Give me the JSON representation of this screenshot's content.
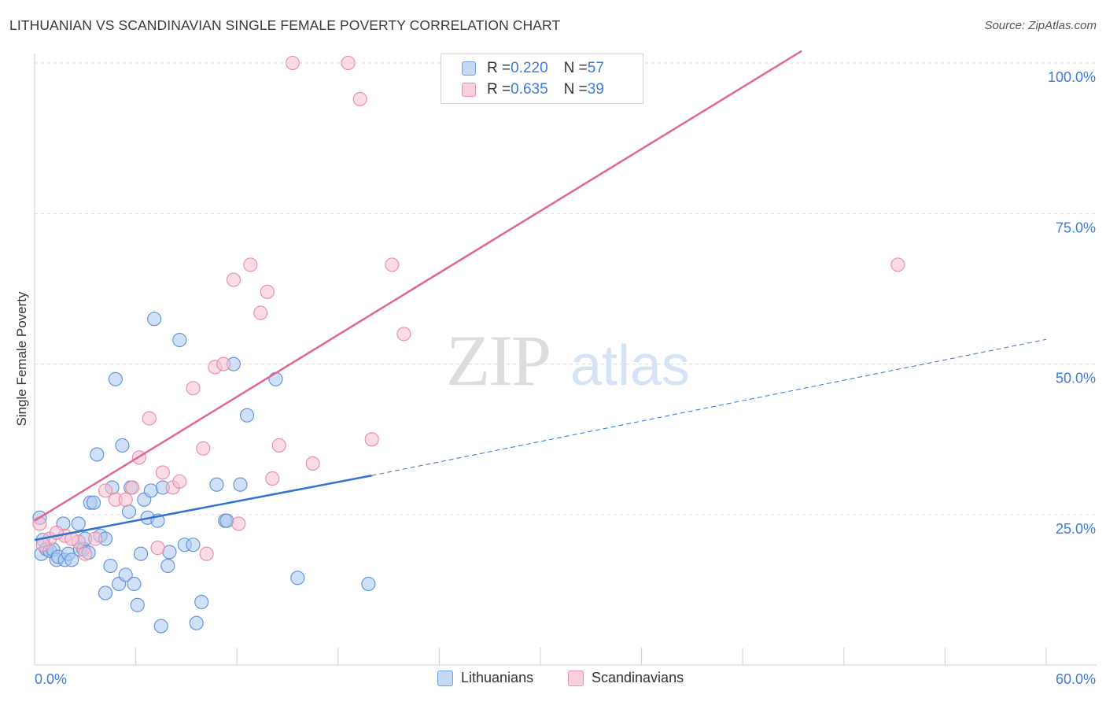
{
  "title": "LITHUANIAN VS SCANDINAVIAN SINGLE FEMALE POVERTY CORRELATION CHART",
  "source": "Source: ZipAtlas.com",
  "watermark": {
    "zip": "ZIP",
    "atlas": "atlas"
  },
  "legend": {
    "items": [
      {
        "r_label": "R = ",
        "r_value": "0.220",
        "n_label": "N = ",
        "n_value": "57",
        "fill": "#a9c8f0",
        "stroke": "#6f9fe0"
      },
      {
        "r_label": "R = ",
        "r_value": "0.635",
        "n_label": "N = ",
        "n_value": "39",
        "fill": "#f7bfd0",
        "stroke": "#ee90ab"
      }
    ]
  },
  "bottom_legend": [
    "Lithuanians",
    "Scandinavians"
  ],
  "colors": {
    "blue_fill": "#a9c8f0",
    "blue_stroke": "#5d8fd6",
    "blue_line": "#2f74d0",
    "pink_fill": "#f7bfd0",
    "pink_stroke": "#e88aa6",
    "pink_line": "#e0688f",
    "axis_label": "#3d7bd9",
    "grid": "#dcdcdc"
  },
  "chart_data": {
    "type": "scatter",
    "title": "LITHUANIAN VS SCANDINAVIAN SINGLE FEMALE POVERTY CORRELATION CHART",
    "xlabel": "",
    "ylabel": "Single Female Poverty",
    "xlim": [
      0,
      60
    ],
    "ylim": [
      0,
      102
    ],
    "x_tick_labels": [
      {
        "value": 0,
        "label": "0.0%"
      },
      {
        "value": 60,
        "label": "60.0%"
      }
    ],
    "y_tick_labels": [
      {
        "value": 25,
        "label": "25.0%"
      },
      {
        "value": 50,
        "label": "50.0%"
      },
      {
        "value": 75,
        "label": "75.0%"
      },
      {
        "value": 100,
        "label": "100.0%"
      }
    ],
    "grid": "horizontal dashed",
    "legend_position": "top-center",
    "series": [
      {
        "name": "Lithuanians",
        "r": 0.22,
        "n": 57,
        "trend": {
          "x0": 0,
          "y0": 20.8,
          "x1": 20,
          "y1": 31.5,
          "dashed_to_x": 60,
          "dashed_to_y": 54.1
        },
        "points": [
          [
            0.4,
            18.5
          ],
          [
            0.5,
            20.8
          ],
          [
            0.7,
            19.3
          ],
          [
            0.9,
            19.0
          ],
          [
            1.1,
            19.2
          ],
          [
            1.3,
            17.5
          ],
          [
            1.4,
            18.0
          ],
          [
            1.7,
            23.5
          ],
          [
            1.8,
            17.5
          ],
          [
            2.0,
            18.5
          ],
          [
            2.2,
            17.5
          ],
          [
            2.6,
            23.5
          ],
          [
            2.7,
            19.2
          ],
          [
            2.9,
            19.3
          ],
          [
            3.0,
            21.0
          ],
          [
            3.2,
            18.7
          ],
          [
            3.3,
            27.0
          ],
          [
            3.5,
            27.0
          ],
          [
            3.7,
            35.0
          ],
          [
            3.9,
            21.5
          ],
          [
            4.2,
            21.0
          ],
          [
            4.2,
            12.0
          ],
          [
            4.5,
            16.5
          ],
          [
            4.6,
            29.5
          ],
          [
            4.8,
            47.5
          ],
          [
            5.0,
            13.5
          ],
          [
            5.2,
            36.5
          ],
          [
            5.4,
            15.0
          ],
          [
            5.6,
            25.5
          ],
          [
            5.7,
            29.5
          ],
          [
            5.9,
            13.5
          ],
          [
            6.1,
            10.0
          ],
          [
            6.3,
            18.5
          ],
          [
            6.5,
            27.5
          ],
          [
            6.7,
            24.5
          ],
          [
            6.9,
            29.0
          ],
          [
            7.1,
            57.5
          ],
          [
            7.3,
            24.0
          ],
          [
            7.5,
            6.5
          ],
          [
            7.6,
            29.5
          ],
          [
            7.9,
            16.5
          ],
          [
            8.0,
            18.8
          ],
          [
            8.6,
            54.0
          ],
          [
            8.9,
            20.0
          ],
          [
            9.4,
            20.0
          ],
          [
            9.6,
            7.0
          ],
          [
            9.9,
            10.5
          ],
          [
            10.8,
            30.0
          ],
          [
            11.3,
            24.0
          ],
          [
            11.4,
            24.0
          ],
          [
            11.8,
            50.0
          ],
          [
            12.2,
            30.0
          ],
          [
            12.6,
            41.5
          ],
          [
            14.3,
            47.5
          ],
          [
            15.6,
            14.5
          ],
          [
            19.8,
            13.5
          ],
          [
            0.3,
            24.5
          ]
        ]
      },
      {
        "name": "Scandinavians",
        "r": 0.635,
        "n": 39,
        "trend": {
          "x0": 0,
          "y0": 24.0,
          "x1": 45.5,
          "y1": 102
        },
        "points": [
          [
            0.3,
            23.5
          ],
          [
            0.9,
            21.0
          ],
          [
            1.8,
            21.5
          ],
          [
            2.6,
            20.5
          ],
          [
            3.0,
            18.5
          ],
          [
            3.6,
            21.0
          ],
          [
            4.2,
            29.0
          ],
          [
            4.8,
            27.5
          ],
          [
            5.4,
            27.5
          ],
          [
            5.8,
            29.5
          ],
          [
            6.2,
            34.5
          ],
          [
            6.8,
            41.0
          ],
          [
            7.3,
            19.5
          ],
          [
            7.6,
            32.0
          ],
          [
            8.2,
            29.5
          ],
          [
            8.6,
            30.5
          ],
          [
            9.4,
            46.0
          ],
          [
            10.0,
            36.0
          ],
          [
            10.2,
            18.5
          ],
          [
            10.7,
            49.5
          ],
          [
            11.2,
            50.0
          ],
          [
            11.8,
            64.0
          ],
          [
            12.1,
            23.5
          ],
          [
            12.8,
            66.5
          ],
          [
            13.4,
            58.5
          ],
          [
            13.8,
            62.0
          ],
          [
            14.1,
            31.0
          ],
          [
            14.5,
            36.5
          ],
          [
            15.3,
            100.0
          ],
          [
            16.5,
            33.5
          ],
          [
            18.6,
            100.0
          ],
          [
            19.3,
            94.0
          ],
          [
            20.0,
            37.5
          ],
          [
            21.2,
            66.5
          ],
          [
            21.9,
            55.0
          ],
          [
            51.2,
            66.5
          ],
          [
            1.3,
            22.0
          ],
          [
            2.2,
            21.0
          ],
          [
            0.5,
            20.0
          ]
        ]
      }
    ]
  }
}
